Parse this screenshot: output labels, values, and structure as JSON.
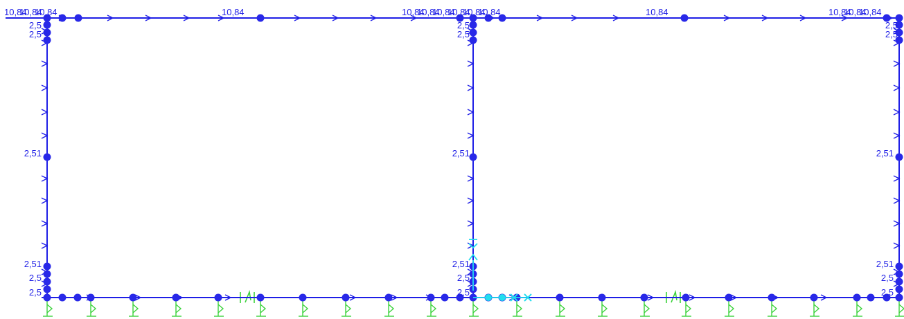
{
  "colors": {
    "frame": "#1e1ee6",
    "node": "#2828e8",
    "support": "#3cd23c",
    "highlight": "#22ddee",
    "background": "#ffffff"
  },
  "load_labels": {
    "beam_load": "10,84",
    "column_load": "2,51",
    "column_load_truncated": "2,5"
  },
  "icons": {
    "load_arrow": "chevron-right-icon",
    "node": "joint-dot-icon",
    "support": "spring-support-icon",
    "selection": "cross-marker-icon"
  }
}
